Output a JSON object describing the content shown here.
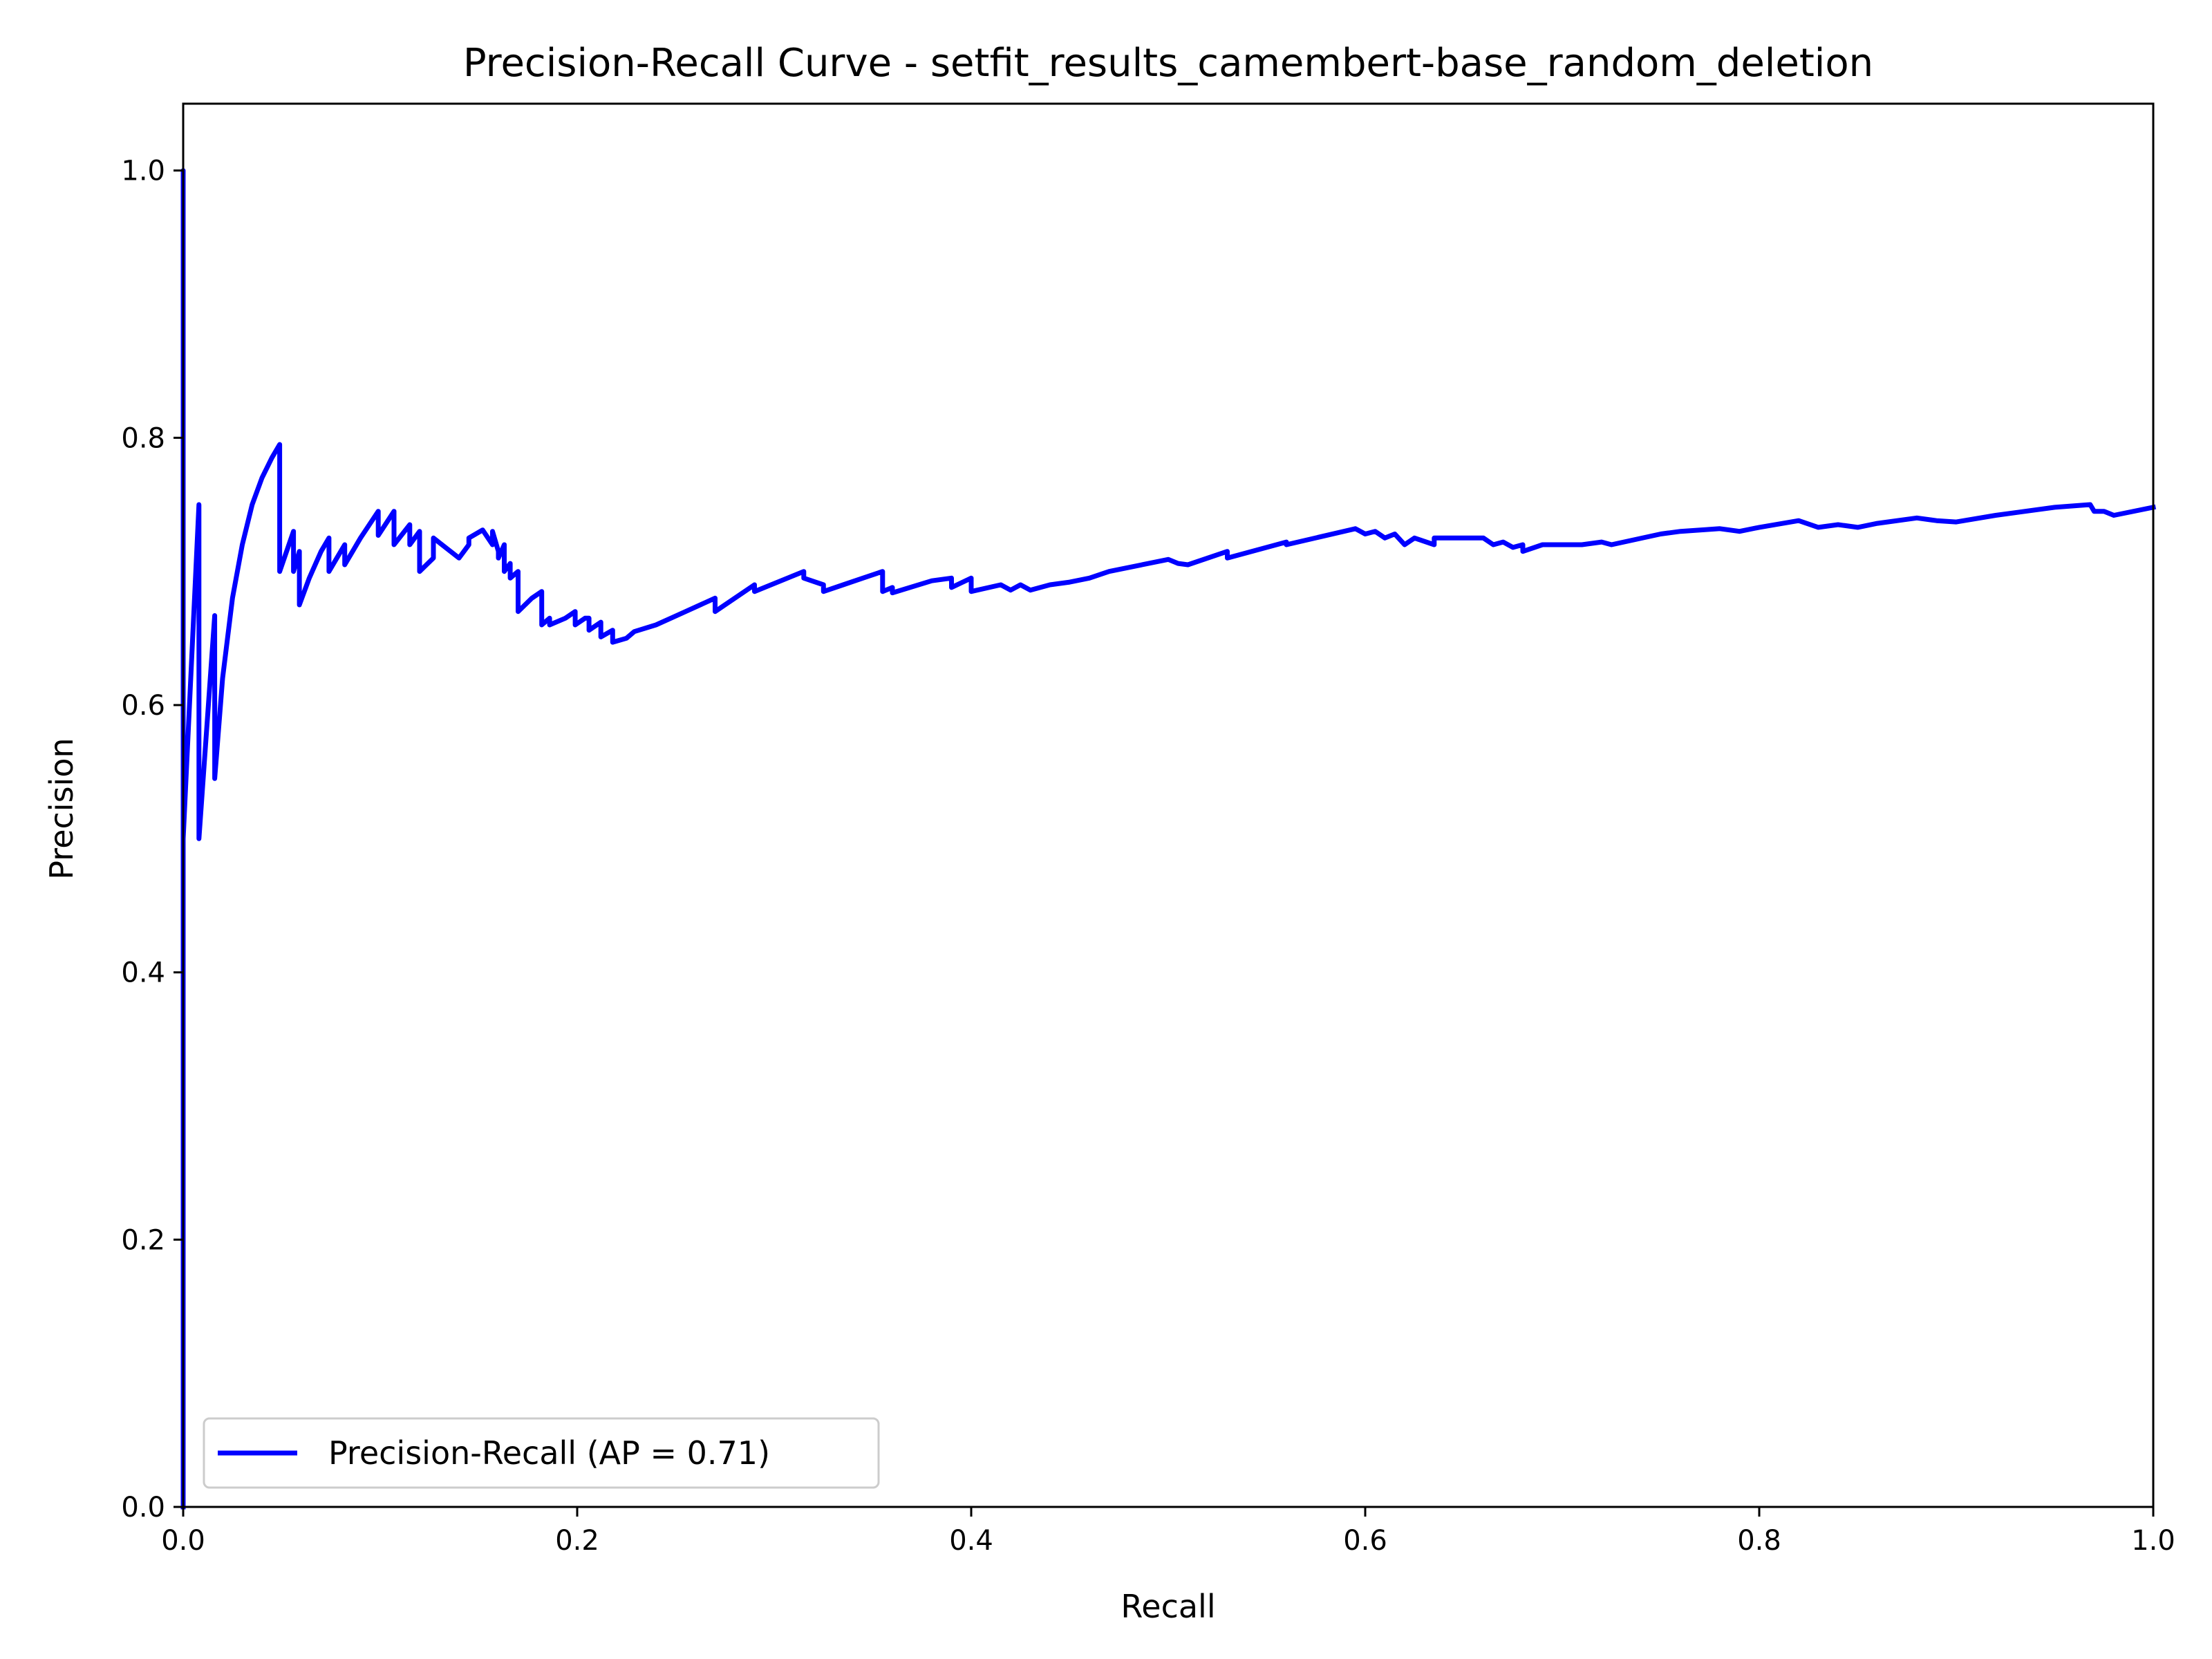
{
  "chart_data": {
    "type": "line",
    "title": "Precision-Recall Curve - setfit_results_camembert-base_random_deletion",
    "xlabel": "Recall",
    "ylabel": "Precision",
    "xlim": [
      0.0,
      1.0
    ],
    "ylim": [
      0.0,
      1.05
    ],
    "x_ticks": [
      "0.0",
      "0.2",
      "0.4",
      "0.6",
      "0.8",
      "1.0"
    ],
    "y_ticks": [
      "0.0",
      "0.2",
      "0.4",
      "0.6",
      "0.8",
      "1.0"
    ],
    "grid": false,
    "legend_position": "lower-left",
    "series": [
      {
        "name": "Precision-Recall (AP = 0.71)",
        "color": "#0000ff",
        "x": [
          0.0,
          0.0,
          0.0,
          0.008,
          0.008,
          0.016,
          0.016,
          0.02,
          0.025,
          0.03,
          0.035,
          0.04,
          0.045,
          0.049,
          0.049,
          0.056,
          0.056,
          0.059,
          0.059,
          0.064,
          0.07,
          0.074,
          0.074,
          0.078,
          0.082,
          0.082,
          0.09,
          0.099,
          0.099,
          0.107,
          0.107,
          0.115,
          0.115,
          0.12,
          0.12,
          0.127,
          0.127,
          0.14,
          0.145,
          0.145,
          0.152,
          0.157,
          0.157,
          0.16,
          0.16,
          0.163,
          0.163,
          0.166,
          0.166,
          0.17,
          0.17,
          0.177,
          0.182,
          0.182,
          0.186,
          0.186,
          0.194,
          0.199,
          0.199,
          0.204,
          0.206,
          0.206,
          0.212,
          0.212,
          0.218,
          0.218,
          0.225,
          0.229,
          0.24,
          0.255,
          0.27,
          0.27,
          0.29,
          0.29,
          0.315,
          0.315,
          0.325,
          0.325,
          0.335,
          0.345,
          0.355,
          0.355,
          0.36,
          0.36,
          0.38,
          0.39,
          0.39,
          0.4,
          0.4,
          0.415,
          0.42,
          0.425,
          0.43,
          0.44,
          0.45,
          0.46,
          0.47,
          0.5,
          0.505,
          0.51,
          0.53,
          0.53,
          0.56,
          0.56,
          0.595,
          0.6,
          0.605,
          0.61,
          0.615,
          0.62,
          0.625,
          0.635,
          0.635,
          0.66,
          0.665,
          0.67,
          0.675,
          0.68,
          0.68,
          0.69,
          0.71,
          0.72,
          0.725,
          0.75,
          0.76,
          0.78,
          0.79,
          0.8,
          0.82,
          0.83,
          0.84,
          0.85,
          0.86,
          0.88,
          0.89,
          0.9,
          0.92,
          0.95,
          0.968,
          0.97,
          0.975,
          0.98,
          1.0
        ],
        "y": [
          0.0,
          1.0,
          0.5,
          0.75,
          0.5,
          0.667,
          0.545,
          0.62,
          0.68,
          0.72,
          0.75,
          0.77,
          0.785,
          0.795,
          0.7,
          0.73,
          0.7,
          0.715,
          0.675,
          0.695,
          0.715,
          0.725,
          0.7,
          0.71,
          0.72,
          0.705,
          0.725,
          0.745,
          0.727,
          0.745,
          0.72,
          0.735,
          0.72,
          0.73,
          0.7,
          0.71,
          0.725,
          0.71,
          0.72,
          0.725,
          0.731,
          0.72,
          0.73,
          0.715,
          0.71,
          0.72,
          0.7,
          0.706,
          0.695,
          0.7,
          0.67,
          0.68,
          0.685,
          0.66,
          0.665,
          0.66,
          0.665,
          0.67,
          0.66,
          0.665,
          0.665,
          0.656,
          0.662,
          0.651,
          0.656,
          0.647,
          0.65,
          0.655,
          0.66,
          0.67,
          0.68,
          0.67,
          0.69,
          0.685,
          0.7,
          0.695,
          0.69,
          0.685,
          0.69,
          0.695,
          0.7,
          0.685,
          0.688,
          0.684,
          0.693,
          0.695,
          0.688,
          0.695,
          0.685,
          0.69,
          0.686,
          0.69,
          0.686,
          0.69,
          0.692,
          0.695,
          0.7,
          0.709,
          0.706,
          0.705,
          0.715,
          0.71,
          0.722,
          0.72,
          0.732,
          0.728,
          0.73,
          0.725,
          0.728,
          0.72,
          0.725,
          0.72,
          0.725,
          0.725,
          0.72,
          0.722,
          0.718,
          0.72,
          0.715,
          0.72,
          0.72,
          0.722,
          0.72,
          0.728,
          0.73,
          0.732,
          0.73,
          0.733,
          0.738,
          0.733,
          0.735,
          0.733,
          0.736,
          0.74,
          0.738,
          0.737,
          0.742,
          0.748,
          0.75,
          0.745,
          0.745,
          0.742,
          0.748
        ]
      }
    ]
  }
}
